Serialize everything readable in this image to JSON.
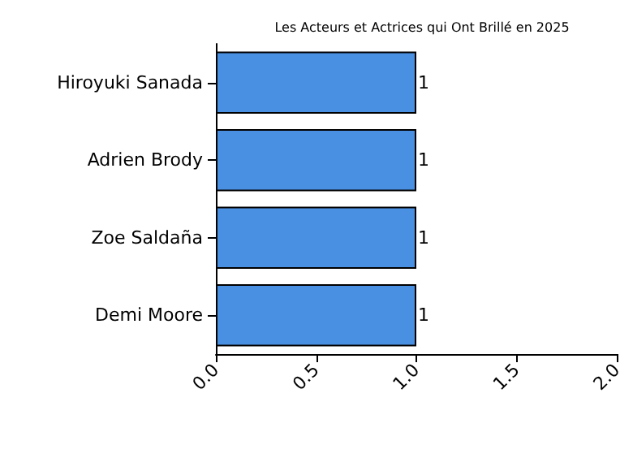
{
  "chart_data": {
    "type": "bar",
    "orientation": "horizontal",
    "title": "Les Acteurs et Actrices qui Ont Brillé en 2025",
    "categories": [
      "Hiroyuki Sanada",
      "Adrien Brody",
      "Zoe Saldaña",
      "Demi Moore"
    ],
    "values": [
      1,
      1,
      1,
      1
    ],
    "color": "#4a90e2",
    "data_labels": true,
    "xlim": [
      0,
      2
    ],
    "xticks": [
      {
        "value": 0,
        "label": "0.0"
      },
      0.5,
      {
        "value": 1,
        "label": "1.0"
      },
      1.5,
      {
        "value": 2,
        "label": "2.0"
      }
    ],
    "grid": false
  }
}
